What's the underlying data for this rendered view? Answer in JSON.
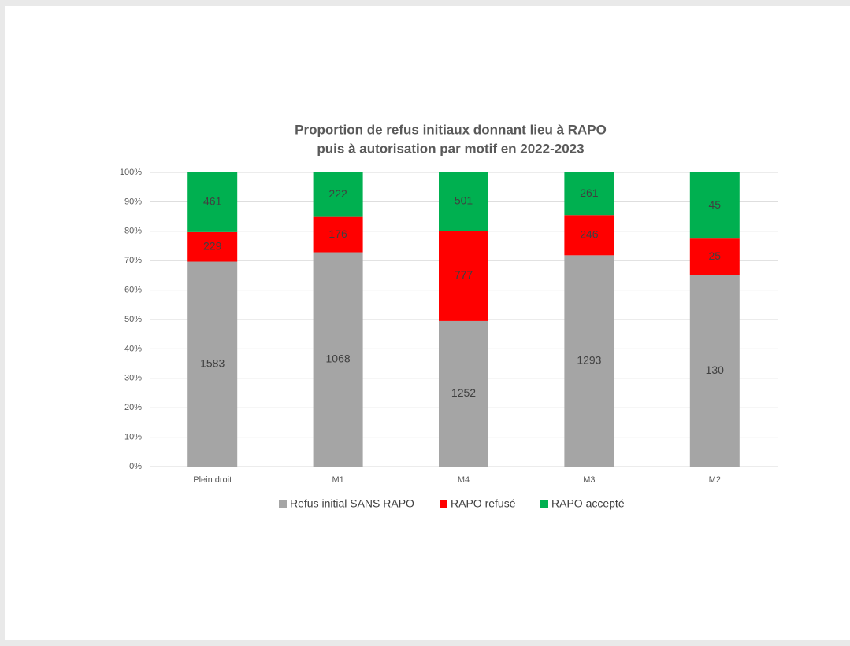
{
  "chart_data": {
    "type": "stacked_percent_bar",
    "title": [
      "Proportion de refus initiaux donnant lieu à RAPO",
      "puis à autorisation par motif en 2022-2023"
    ],
    "categories": [
      "Plein droit",
      "M1",
      "M4",
      "M3",
      "M2"
    ],
    "series": [
      {
        "name": "Refus initial SANS RAPO",
        "color": "#a5a5a5",
        "values": [
          1583,
          1068,
          1252,
          1293,
          130
        ]
      },
      {
        "name": "RAPO refusé",
        "color": "#ff0000",
        "values": [
          229,
          176,
          777,
          246,
          25
        ]
      },
      {
        "name": "RAPO accepté",
        "color": "#00b050",
        "values": [
          461,
          222,
          501,
          261,
          45
        ]
      }
    ],
    "ylim": [
      0,
      100
    ],
    "yticks": [
      {
        "value": 0,
        "label": "0%"
      },
      {
        "value": 10,
        "label": "10%"
      },
      {
        "value": 20,
        "label": "20%"
      },
      {
        "value": 30,
        "label": "30%"
      },
      {
        "value": 40,
        "label": "40%"
      },
      {
        "value": 50,
        "label": "50%"
      },
      {
        "value": 60,
        "label": "60%"
      },
      {
        "value": 70,
        "label": "70%"
      },
      {
        "value": 80,
        "label": "80%"
      },
      {
        "value": 90,
        "label": "90%"
      },
      {
        "value": 100,
        "label": "100%"
      }
    ],
    "grid": true,
    "legend": "bottom"
  }
}
